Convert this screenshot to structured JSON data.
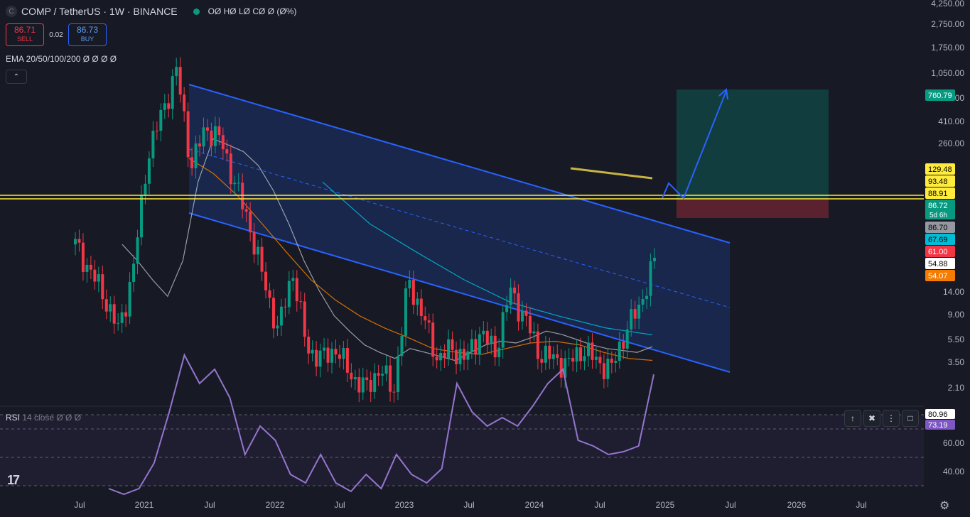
{
  "header": {
    "symbol_badge": "C",
    "title": "COMP / TetherUS · 1W · BINANCE",
    "ohlc": "OØ HØ LØ CØ Ø (Ø%)"
  },
  "trade": {
    "sell_price": "86.71",
    "sell_label": "SELL",
    "spread": "0.02",
    "buy_price": "86.73",
    "buy_label": "BUY"
  },
  "indicators": {
    "ema_label": "EMA 20/50/100/200  Ø Ø Ø Ø",
    "collapse_icon": "chevron-up-icon",
    "rsi_label": "RSI",
    "rsi_sub": "14 close  Ø Ø Ø"
  },
  "pane_tools": [
    "arrow-up-icon",
    "trash-icon",
    "more-icon",
    "maximize-icon"
  ],
  "chart_data": [
    {
      "type": "line",
      "scale": "log",
      "x_ticks": [
        "Jul",
        "2021",
        "Jul",
        "2022",
        "Jul",
        "2023",
        "Jul",
        "2024",
        "Jul",
        "2025",
        "Jul",
        "2026",
        "Jul"
      ],
      "y_ticks": [
        "4,250.00",
        "2,750.00",
        "1,750.00",
        "1,050.00",
        "650.00",
        "410.00",
        "260.00",
        "14.00",
        "9.00",
        "5.50",
        "3.50",
        "2.10"
      ],
      "price_labels": [
        {
          "value": "760.79",
          "color": "#089981",
          "text_color": "#ffffff"
        },
        {
          "value": "129.48",
          "color": "#ffeb3b",
          "text_color": "#000000"
        },
        {
          "value": "93.48",
          "color": "#ffeb3b",
          "text_color": "#000000"
        },
        {
          "value": "88.91",
          "color": "#ffeb3b",
          "text_color": "#000000"
        },
        {
          "value": "86.72",
          "sub": "5d 6h",
          "color": "#089981",
          "text_color": "#ffffff"
        },
        {
          "value": "86.70",
          "color": "#9598a1",
          "text_color": "#000000"
        },
        {
          "value": "67.69",
          "color": "#00bcd4",
          "text_color": "#000000"
        },
        {
          "value": "61.00",
          "color": "#f23645",
          "text_color": "#ffffff"
        },
        {
          "value": "54.88",
          "color": "#ffffff",
          "text_color": "#000000"
        },
        {
          "value": "54.07",
          "color": "#f57c00",
          "text_color": "#ffffff"
        }
      ],
      "series": [
        {
          "values": [
            150,
            120,
            95,
            70,
            120,
            330,
            480,
            700,
            300,
            420,
            380,
            260,
            180,
            110,
            70,
            120,
            60,
            55,
            60,
            48,
            42,
            50,
            42,
            110,
            80,
            55,
            60,
            55,
            70,
            58,
            100,
            80,
            58,
            55,
            52,
            60,
            54,
            50,
            70,
            88,
            130
          ]
        },
        {
          "name": "EMA",
          "values": [
            150,
            130,
            110,
            95,
            130,
            260,
            380,
            360,
            340,
            300,
            240,
            180,
            130,
            100,
            80,
            70,
            62,
            58,
            55,
            60,
            58,
            56,
            54,
            58,
            62,
            64,
            63,
            66,
            70,
            68,
            65,
            62,
            60,
            59,
            58,
            61.0
          ]
        },
        {
          "name": "EMA",
          "values": [
            320,
            280,
            230,
            180,
            140,
            110,
            92,
            80,
            72,
            66,
            60,
            58,
            57,
            60,
            63,
            64,
            62,
            58,
            55,
            54.07
          ]
        },
        {
          "name": "EMA",
          "values": [
            260,
            180,
            140,
            110,
            90,
            80,
            72,
            67.69
          ]
        }
      ],
      "colors": {
        "up": "#089981",
        "down": "#f23645",
        "channel": "#2962ff",
        "target": "#ffeb3b"
      }
    },
    {
      "type": "line",
      "y_ticks": [
        "60.00",
        "40.00"
      ],
      "value_labels": [
        {
          "value": "80.96",
          "color": "#ffffff",
          "text_color": "#000000"
        },
        {
          "value": "73.19",
          "color": "#7e57c2",
          "text_color": "#ffffff"
        }
      ],
      "series": [
        {
          "name": "RSI",
          "values": [
            33,
            31,
            33,
            42,
            60,
            80,
            70,
            75,
            65,
            45,
            55,
            50,
            38,
            35,
            45,
            35,
            32,
            38,
            33,
            45,
            38,
            35,
            40,
            70,
            60,
            55,
            58,
            55,
            62,
            70,
            75,
            50,
            48,
            45,
            46,
            48,
            73.19
          ]
        }
      ]
    }
  ]
}
